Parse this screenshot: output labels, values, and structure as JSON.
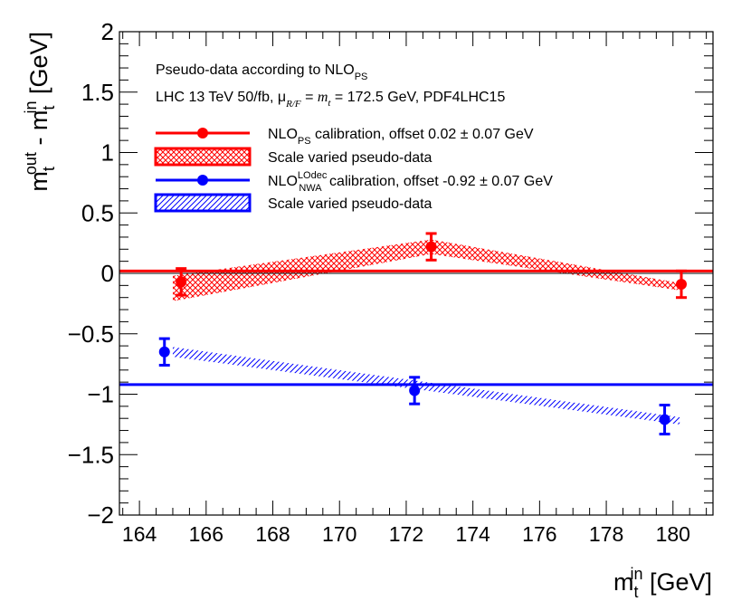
{
  "chart_data": {
    "type": "scatter",
    "x_axis": {
      "label_main": "m",
      "label_sub": "t",
      "label_sup": "in",
      "label_unit": " [GeV]",
      "min": 163.4,
      "max": 181.2,
      "ticks": [
        164,
        166,
        168,
        170,
        172,
        174,
        176,
        178,
        180
      ]
    },
    "y_axis": {
      "label_main": "m",
      "label_sup_out": "out",
      "label_sub_out": "t",
      "label_mid": " - m",
      "label_sup_in": "in",
      "label_sub_in": "t",
      "label_unit": " [GeV]",
      "min": -2,
      "max": 2,
      "ticks": [
        -2,
        -1.5,
        -1,
        -0.5,
        0,
        0.5,
        1,
        1.5,
        2
      ],
      "tick_labels": [
        "−2",
        "−1.5",
        "−1",
        "−0.5",
        "0",
        "0.5",
        "1",
        "1.5",
        "2"
      ]
    },
    "header": {
      "line1_main": "Pseudo-data according to NLO",
      "line1_sub": "PS",
      "line2_a": "LHC 13 TeV 50/fb, μ",
      "line2_sub": "R/F",
      "line2_eq": " = ",
      "line2_mt": "m",
      "line2_mt_sub": "t",
      "line2_b": " = 172.5 GeV, PDF4LHC15"
    },
    "legend": [
      {
        "type": "line-marker",
        "color": "#ff0000",
        "main": "NLO",
        "sub": "PS",
        "sup": "",
        "rest": " calibration, offset 0.02 ± 0.07 GeV"
      },
      {
        "type": "band",
        "color": "#ff0000",
        "main": "Scale varied pseudo-data",
        "sub": "",
        "sup": "",
        "rest": ""
      },
      {
        "type": "line-marker",
        "color": "#0000ff",
        "main": "NLO",
        "sub": "NWA",
        "sup": "LOdec",
        "rest": " calibration, offset -0.92 ± 0.07 GeV"
      },
      {
        "type": "band",
        "color": "#0000ff",
        "main": "Scale varied pseudo-data",
        "sub": "",
        "sup": "",
        "rest": ""
      }
    ],
    "series": [
      {
        "color": "#ff0000",
        "offset": 0.02,
        "points": [
          {
            "x": 165.25,
            "y": -0.07,
            "err": 0.11
          },
          {
            "x": 172.75,
            "y": 0.22,
            "err": 0.11
          },
          {
            "x": 180.25,
            "y": -0.09,
            "err": 0.11
          }
        ],
        "band": {
          "x": [
            165.0,
            172.75,
            180.2
          ],
          "upper": [
            -0.02,
            0.28,
            -0.08
          ],
          "lower": [
            -0.23,
            0.16,
            -0.14
          ]
        }
      },
      {
        "color": "#0000ff",
        "offset": -0.92,
        "points": [
          {
            "x": 164.75,
            "y": -0.65,
            "err": 0.11
          },
          {
            "x": 172.25,
            "y": -0.97,
            "err": 0.11
          },
          {
            "x": 179.75,
            "y": -1.21,
            "err": 0.12
          }
        ],
        "band": {
          "x": [
            165.0,
            180.2
          ],
          "upper": [
            -0.61,
            -1.19
          ],
          "lower": [
            -0.69,
            -1.25
          ]
        }
      }
    ],
    "zero_line": 0
  }
}
